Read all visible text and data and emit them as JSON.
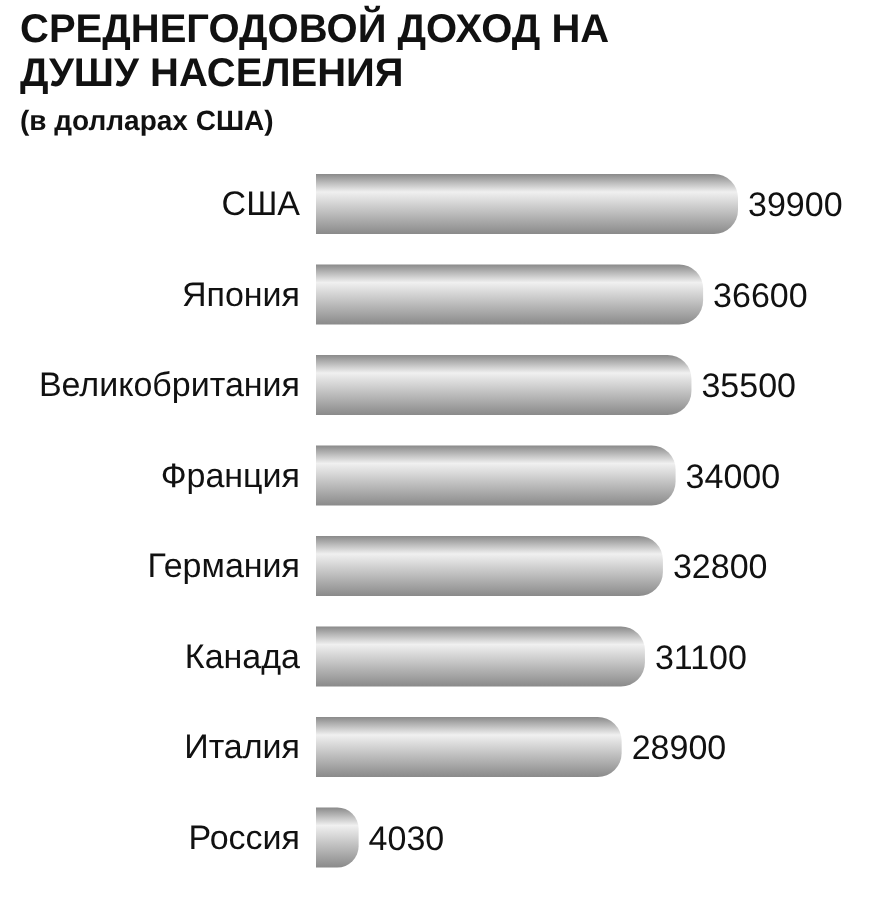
{
  "chart_data": {
    "type": "bar",
    "orientation": "horizontal",
    "title": "СРЕДНЕГОДОВОЙ ДОХОД НА ДУШУ НАСЕЛЕНИЯ",
    "subtitle": "(в долларах США)",
    "categories": [
      "США",
      "Япония",
      "Великобритания",
      "Франция",
      "Германия",
      "Канада",
      "Италия",
      "Россия"
    ],
    "values": [
      39900,
      36600,
      35500,
      34000,
      32800,
      31100,
      28900,
      4030
    ],
    "color": "#8a8a8a",
    "data_labels": true,
    "tick_labels": "y"
  }
}
